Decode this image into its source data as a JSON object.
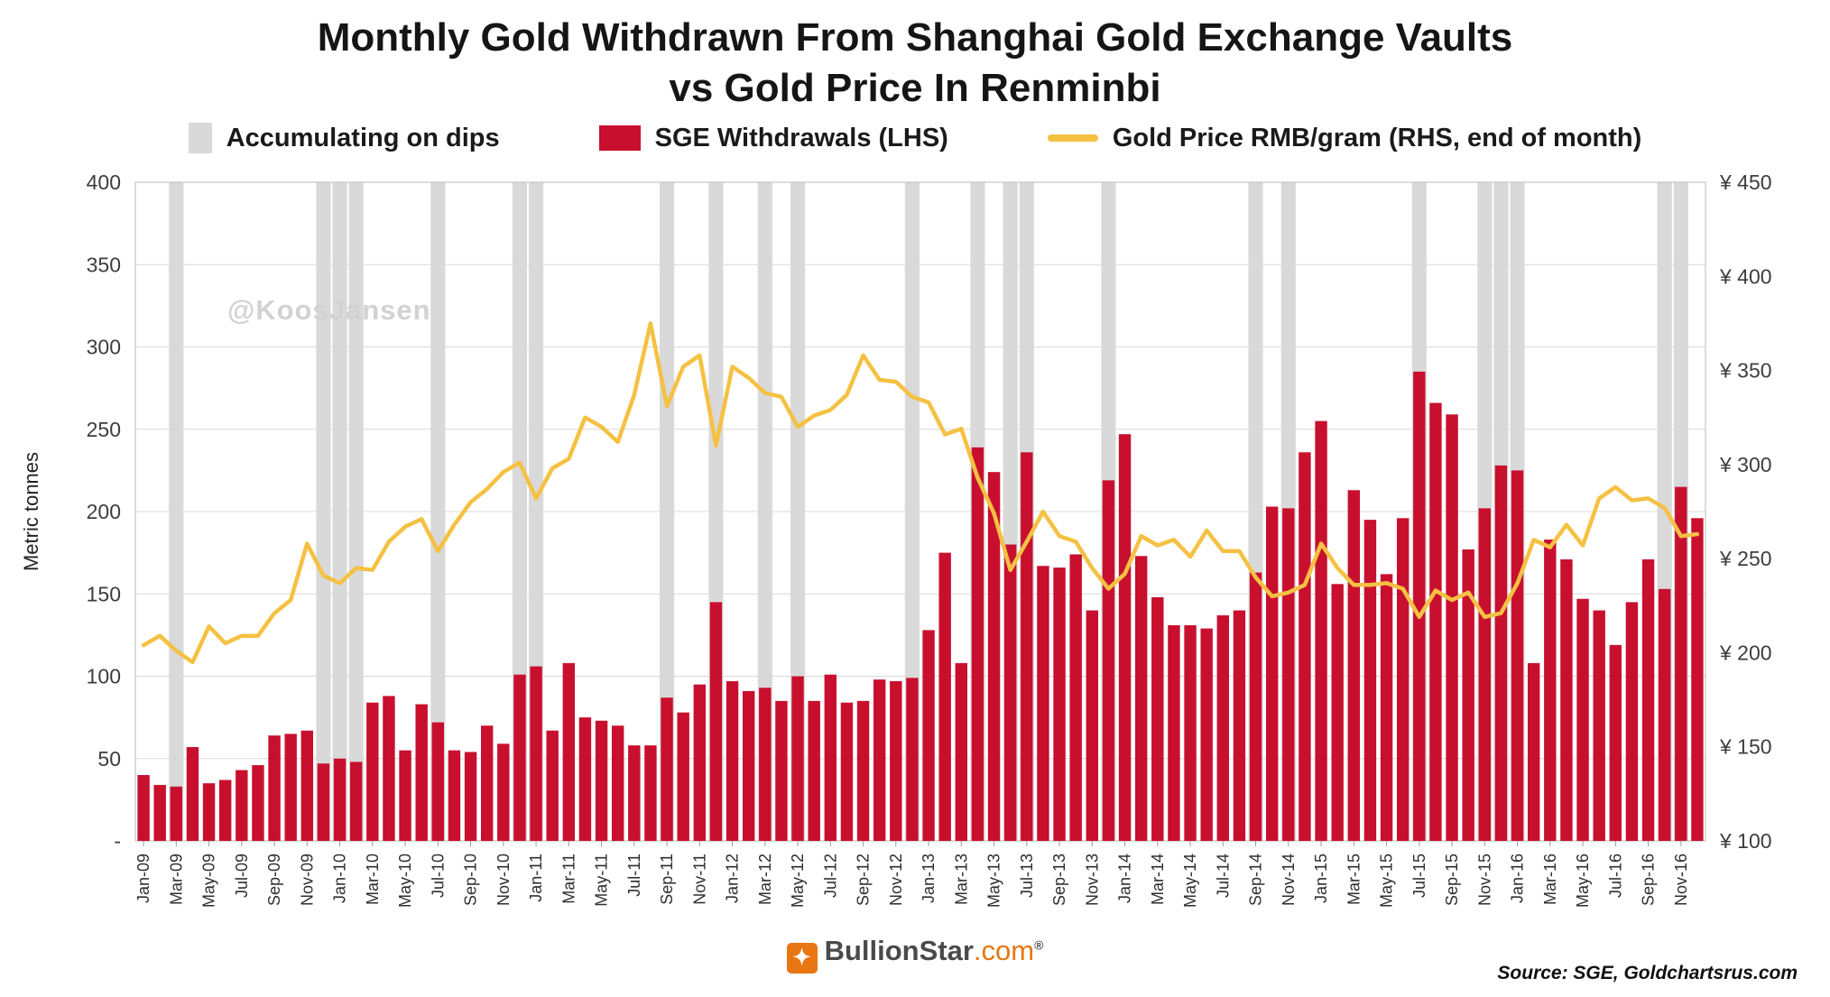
{
  "title": {
    "line1": "Monthly Gold Withdrawn From Shanghai Gold Exchange Vaults",
    "line2": "vs Gold Price In Renminbi"
  },
  "watermark": "@KoosJansen",
  "legend": [
    {
      "label": "Accumulating on dips",
      "type": "band",
      "color": "#d9d9d9"
    },
    {
      "label": "SGE Withdrawals (LHS)",
      "type": "bar",
      "color": "#c8102e"
    },
    {
      "label": "Gold Price RMB/gram (RHS, end of month)",
      "type": "line",
      "color": "#f5c143"
    }
  ],
  "footer": {
    "logo_star": "✦",
    "logo_text": "BullionStar",
    "logo_suffix": ".com",
    "registered": "®",
    "logo_color": "#e87613",
    "source": "Source: SGE, Goldchartsrus.com"
  },
  "chart_data": {
    "type": "bar+line combo",
    "title": "Monthly Gold Withdrawn From Shanghai Gold Exchange Vaults vs Gold Price In Renminbi",
    "grid": true,
    "legend_position": "top",
    "x_ticks_shown_every": 2,
    "colors": {
      "grid": "#d9d9d9",
      "border": "#c6c6c6",
      "band": "#d9d9d9",
      "bar": "#c8102e",
      "line": "#f5c143"
    },
    "left_axis": {
      "label": "Metric tonnes",
      "min": 0,
      "max": 400,
      "tick_step": 50,
      "zero_label": "-"
    },
    "right_axis": {
      "label": "Gold Price RMB/gram",
      "min": 100,
      "max": 450,
      "tick_step": 50,
      "prefix": "¥ "
    },
    "left_axis_ticks": [
      {
        "label": "400",
        "value": 400
      },
      {
        "label": "350",
        "value": 350
      },
      {
        "label": "300",
        "value": 300
      },
      {
        "label": "250",
        "value": 250
      },
      {
        "label": "200",
        "value": 200
      },
      {
        "label": "150",
        "value": 150
      },
      {
        "label": "100",
        "value": 100
      },
      {
        "label": "50",
        "value": 50
      },
      {
        "label": "-",
        "value": 0
      }
    ],
    "right_axis_ticks": [
      {
        "label": "¥ 450",
        "value": 450
      },
      {
        "label": "¥ 400",
        "value": 400
      },
      {
        "label": "¥ 350",
        "value": 350
      },
      {
        "label": "¥ 300",
        "value": 300
      },
      {
        "label": "¥ 250",
        "value": 250
      },
      {
        "label": "¥ 200",
        "value": 200
      },
      {
        "label": "¥ 150",
        "value": 150
      },
      {
        "label": "¥ 100",
        "value": 100
      }
    ],
    "categories": [
      "Jan-09",
      "Feb-09",
      "Mar-09",
      "Apr-09",
      "May-09",
      "Jun-09",
      "Jul-09",
      "Aug-09",
      "Sep-09",
      "Oct-09",
      "Nov-09",
      "Dec-09",
      "Jan-10",
      "Feb-10",
      "Mar-10",
      "Apr-10",
      "May-10",
      "Jun-10",
      "Jul-10",
      "Aug-10",
      "Sep-10",
      "Oct-10",
      "Nov-10",
      "Dec-10",
      "Jan-11",
      "Feb-11",
      "Mar-11",
      "Apr-11",
      "May-11",
      "Jun-11",
      "Jul-11",
      "Aug-11",
      "Sep-11",
      "Oct-11",
      "Nov-11",
      "Dec-11",
      "Jan-12",
      "Feb-12",
      "Mar-12",
      "Apr-12",
      "May-12",
      "Jun-12",
      "Jul-12",
      "Aug-12",
      "Sep-12",
      "Oct-12",
      "Nov-12",
      "Dec-12",
      "Jan-13",
      "Feb-13",
      "Mar-13",
      "Apr-13",
      "May-13",
      "Jun-13",
      "Jul-13",
      "Aug-13",
      "Sep-13",
      "Oct-13",
      "Nov-13",
      "Dec-13",
      "Jan-14",
      "Feb-14",
      "Mar-14",
      "Apr-14",
      "May-14",
      "Jun-14",
      "Jul-14",
      "Aug-14",
      "Sep-14",
      "Oct-14",
      "Nov-14",
      "Dec-14",
      "Jan-15",
      "Feb-15",
      "Mar-15",
      "Apr-15",
      "May-15",
      "Jun-15",
      "Jul-15",
      "Aug-15",
      "Sep-15",
      "Oct-15",
      "Nov-15",
      "Dec-15",
      "Jan-16",
      "Feb-16",
      "Mar-16",
      "Apr-16",
      "May-16",
      "Jun-16",
      "Jul-16",
      "Aug-16",
      "Sep-16",
      "Oct-16",
      "Nov-16",
      "Dec-16"
    ],
    "series": [
      {
        "name": "SGE Withdrawals (LHS)",
        "type": "bar",
        "axis": "left",
        "unit": "metric tonnes",
        "color": "#c8102e",
        "values": [
          40,
          34,
          33,
          57,
          35,
          37,
          43,
          46,
          64,
          65,
          67,
          47,
          50,
          48,
          84,
          88,
          55,
          83,
          72,
          55,
          54,
          70,
          59,
          101,
          106,
          67,
          108,
          75,
          73,
          70,
          58,
          58,
          87,
          78,
          95,
          145,
          97,
          91,
          93,
          85,
          100,
          85,
          101,
          84,
          85,
          98,
          97,
          99,
          128,
          175,
          108,
          239,
          224,
          180,
          236,
          167,
          166,
          174,
          140,
          219,
          247,
          173,
          148,
          131,
          131,
          129,
          137,
          140,
          163,
          203,
          202,
          236,
          255,
          156,
          213,
          195,
          162,
          196,
          285,
          266,
          259,
          177,
          202,
          228,
          225,
          108,
          183,
          171,
          147,
          140,
          119,
          145,
          171,
          153,
          215,
          196
        ]
      },
      {
        "name": "Gold Price RMB/gram (RHS, end of month)",
        "type": "line",
        "axis": "right",
        "unit": "CNY per gram",
        "color": "#f5c143",
        "values": [
          204,
          209,
          201,
          195,
          214,
          205,
          209,
          209,
          221,
          228,
          258,
          241,
          237,
          245,
          244,
          259,
          267,
          271,
          254,
          268,
          280,
          287,
          296,
          301,
          282,
          298,
          303,
          325,
          320,
          312,
          337,
          375,
          331,
          352,
          358,
          310,
          352,
          346,
          338,
          336,
          320,
          326,
          329,
          337,
          358,
          345,
          344,
          336,
          333,
          316,
          319,
          293,
          274,
          244,
          259,
          275,
          262,
          259,
          245,
          234,
          242,
          262,
          257,
          260,
          251,
          265,
          254,
          254,
          240,
          230,
          232,
          236,
          258,
          245,
          236,
          236,
          237,
          234,
          219,
          233,
          228,
          232,
          219,
          221,
          237,
          260,
          256,
          268,
          257,
          282,
          288,
          281,
          282,
          277,
          262,
          263
        ]
      },
      {
        "name": "Accumulating on dips",
        "type": "background-band",
        "color": "#d9d9d9",
        "months": [
          "Mar-09",
          "Dec-09",
          "Jan-10",
          "Feb-10",
          "Jul-10",
          "Dec-10",
          "Jan-11",
          "Sep-11",
          "Dec-11",
          "Mar-12",
          "May-12",
          "Dec-12",
          "Apr-13",
          "Jun-13",
          "Jul-13",
          "Dec-13",
          "Sep-14",
          "Nov-14",
          "Jul-15",
          "Nov-15",
          "Dec-15",
          "Jan-16",
          "Oct-16",
          "Nov-16"
        ]
      }
    ]
  }
}
